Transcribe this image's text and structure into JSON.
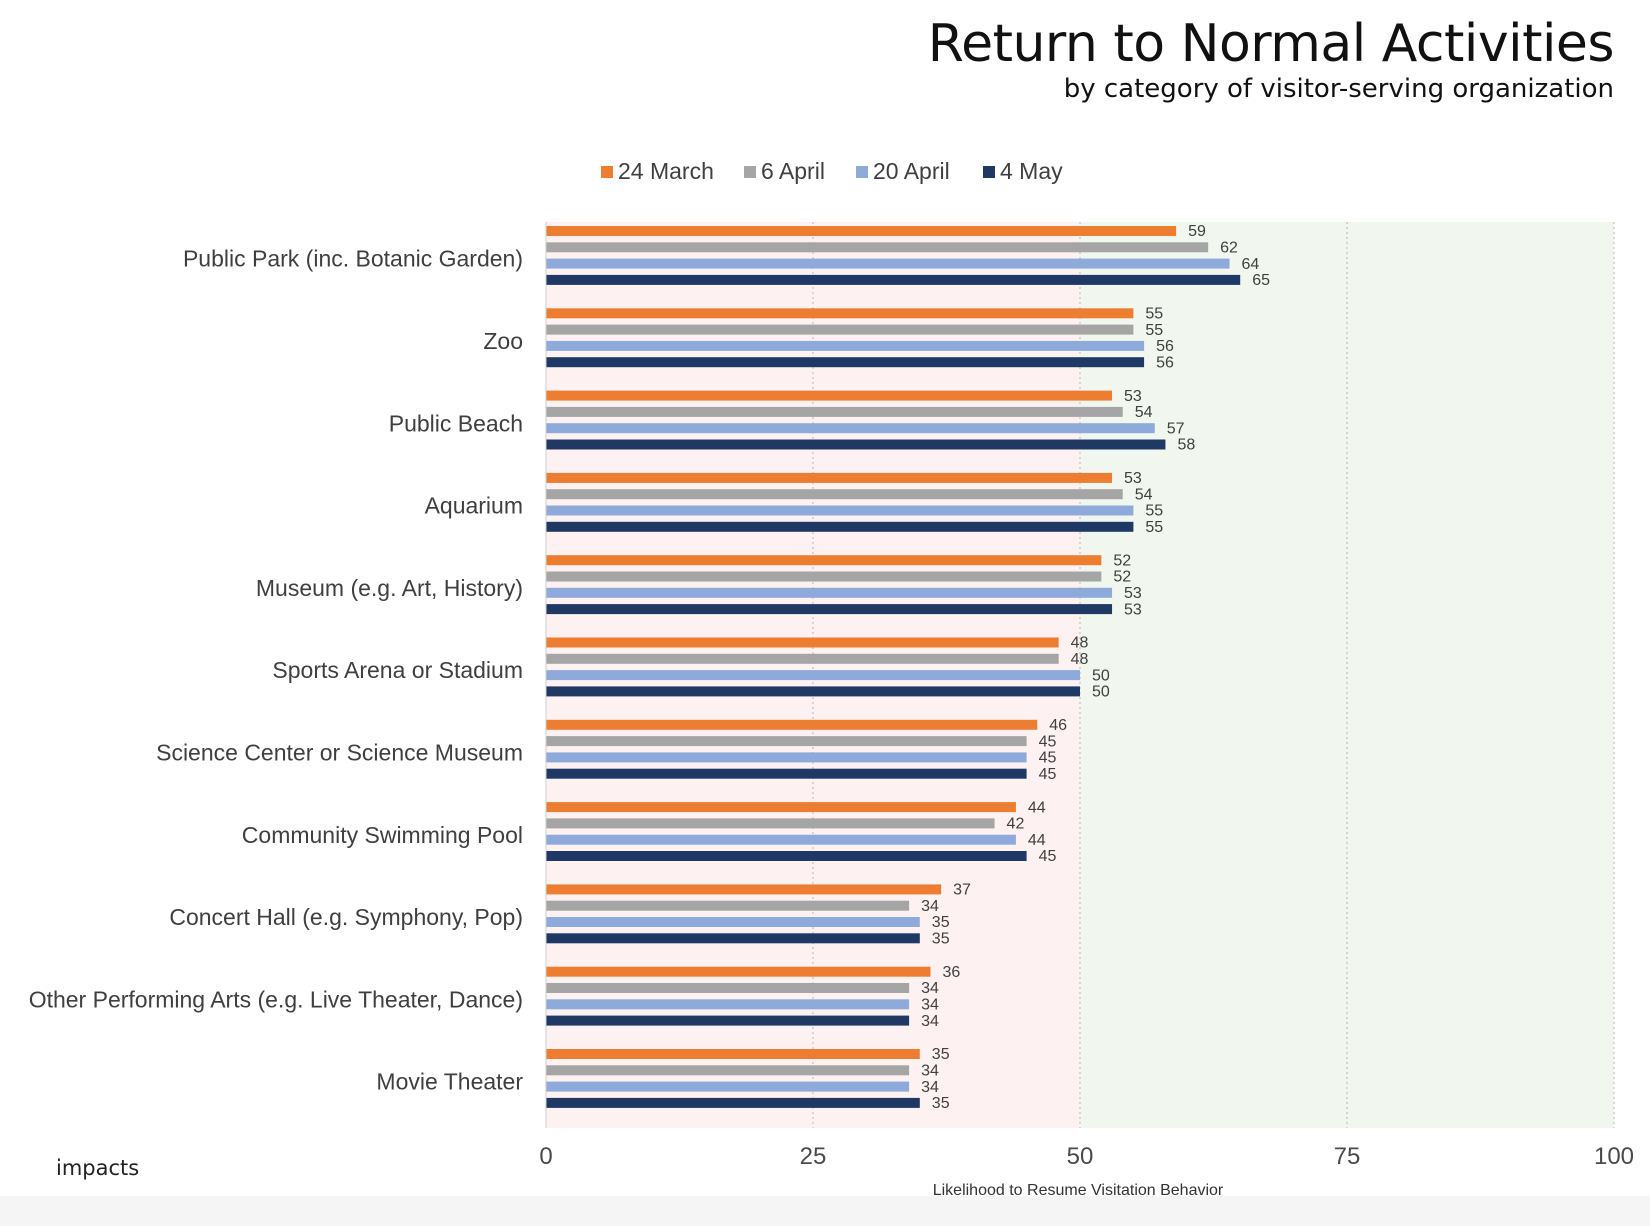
{
  "chart_data": {
    "type": "bar",
    "orientation": "horizontal",
    "title": "Return to Normal Activities",
    "subtitle": "by category of visitor-serving organization",
    "xlabel": "Likelihood to Resume Visitation Behavior",
    "ylabel": "",
    "xlim": [
      0,
      100
    ],
    "xticks": [
      0,
      25,
      50,
      75,
      100
    ],
    "grid": "dotted vertical",
    "legend_position": "top",
    "shaded_regions": [
      {
        "from": 0,
        "to": 50,
        "color": "#fdf1f1"
      },
      {
        "from": 50,
        "to": 100,
        "color": "#f1f6ee"
      }
    ],
    "categories": [
      "Public Park (inc. Botanic Garden)",
      "Zoo",
      "Public Beach",
      "Aquarium",
      "Museum (e.g. Art, History)",
      "Sports Arena or Stadium",
      "Science Center or Science Museum",
      "Community Swimming Pool",
      "Concert Hall (e.g. Symphony, Pop)",
      "Other Performing Arts (e.g. Live Theater, Dance)",
      "Movie Theater"
    ],
    "series": [
      {
        "name": "24 March",
        "color": "#ed7d31",
        "values": [
          59,
          55,
          53,
          53,
          52,
          48,
          46,
          44,
          37,
          36,
          35
        ]
      },
      {
        "name": "6 April",
        "color": "#a5a5a5",
        "values": [
          62,
          55,
          54,
          54,
          52,
          48,
          45,
          42,
          34,
          34,
          34
        ]
      },
      {
        "name": "20 April",
        "color": "#8eaadb",
        "values": [
          64,
          56,
          57,
          55,
          53,
          50,
          45,
          44,
          35,
          34,
          34
        ]
      },
      {
        "name": "4 May",
        "color": "#203864",
        "values": [
          65,
          56,
          58,
          55,
          53,
          50,
          45,
          45,
          35,
          34,
          35
        ]
      }
    ]
  },
  "brand": {
    "logo_text": "impacts"
  }
}
